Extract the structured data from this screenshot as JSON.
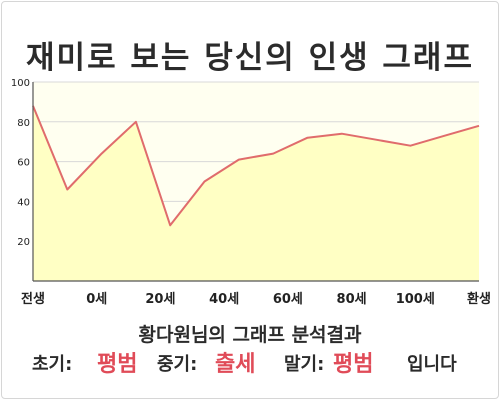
{
  "title": "재미로 보는 당신의 인생 그래프",
  "chart_data": {
    "type": "area",
    "x": [
      "전생",
      0,
      10,
      20,
      30,
      40,
      50,
      60,
      70,
      80,
      90,
      100,
      110,
      "환생"
    ],
    "values": [
      88,
      46,
      64,
      80,
      28,
      50,
      61,
      64,
      72,
      74,
      71,
      68,
      73,
      78
    ],
    "x_tick_labels": [
      "전생",
      "0세",
      "20세",
      "40세",
      "60세",
      "80세",
      "100세",
      "환생"
    ],
    "y_ticks": [
      20,
      40,
      60,
      80,
      100
    ],
    "ylim": [
      0,
      100
    ],
    "grid": "horizontal",
    "line_color": "#e06c6c",
    "fill_color": "#ffffc4",
    "plot_bg": "#fffff0"
  },
  "result": {
    "title": "황다원님의 그래프 분석결과",
    "early_label": "초기:",
    "early_value": "평범",
    "mid_label": "중기:",
    "mid_value": "출세",
    "late_label": "말기:",
    "late_value": "평범",
    "suffix": "입니다"
  }
}
